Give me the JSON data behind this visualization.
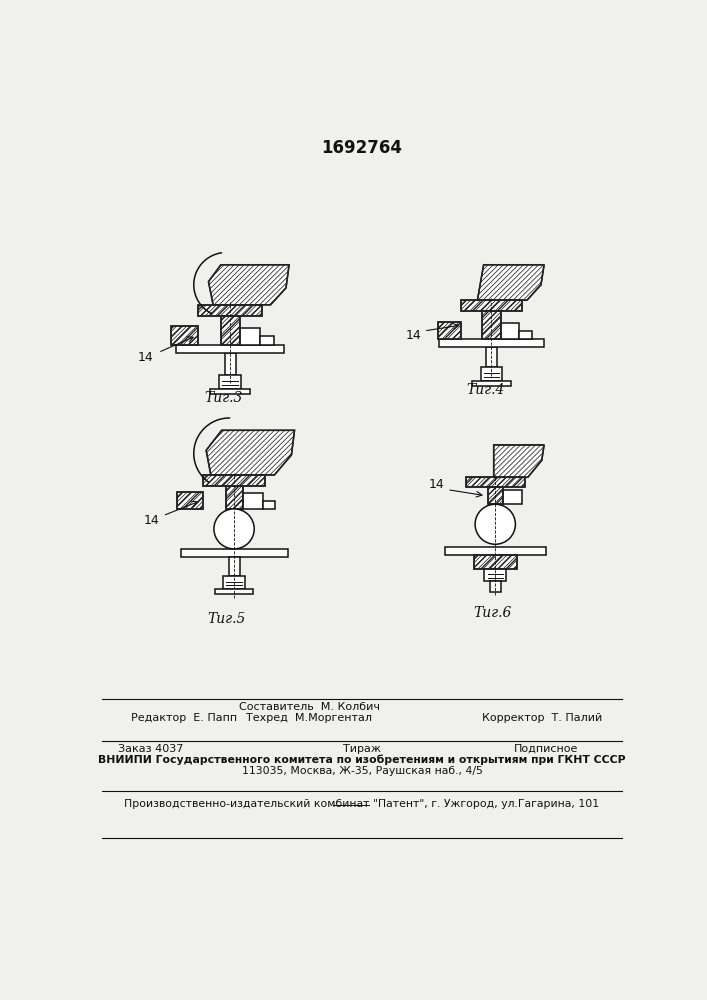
{
  "title": "1692764",
  "fig3_label": "Τиг.3",
  "fig4_label": "Τиг.4",
  "fig5_label": "Τиг.5",
  "fig6_label": "Τиг.6",
  "label14": "14",
  "bg_color": "#f0f0ec",
  "line_color": "#111111",
  "hatch_color": "#222222",
  "footer_sestavitel": "Составитель  М. Колбич",
  "footer_tehred": "Техред  М.Моргентал",
  "footer_redaktor": "Редактор  Е. Папп",
  "footer_korrektor": "Корректор  Т. Палий",
  "footer_zakaz": "Заказ 4037",
  "footer_tirazh": "Тираж",
  "footer_podpisnoe": "Подписное",
  "footer_vniipи": "ВНИИПИ Государственного комитета по изобретениям и открытиям при ГКНТ СССР",
  "footer_addr": "113035, Москва, Ж-35, Раушская наб., 4/5",
  "footer_patent": "Производственно-издательский комбинат \"Патент\", г. Ужгород, ул.Гагарина, 101"
}
